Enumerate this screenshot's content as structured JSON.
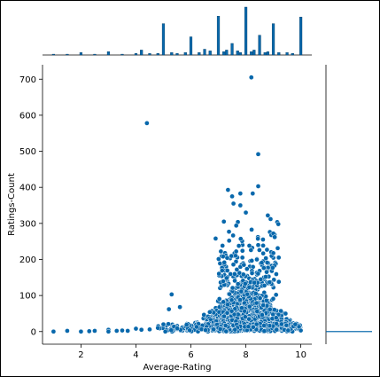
{
  "chart_data": {
    "type": "scatter",
    "title": "",
    "xlabel": "Average-Rating",
    "ylabel": "Ratings-Count",
    "xlim": [
      0.6,
      10.4
    ],
    "ylim": [
      -35,
      740
    ],
    "x_ticks": [
      2,
      4,
      6,
      8,
      10
    ],
    "y_ticks": [
      0,
      100,
      200,
      300,
      400,
      500,
      600,
      700
    ],
    "point_color": "#0868ac",
    "point_edge": "#ffffff",
    "grid": false,
    "legend": "none",
    "marginal_x": "histogram",
    "marginal_y": "histogram",
    "highlighted_points": [
      {
        "x": 8.2,
        "y": 705
      },
      {
        "x": 4.4,
        "y": 578
      },
      {
        "x": 8.45,
        "y": 492
      },
      {
        "x": 8.45,
        "y": 403
      },
      {
        "x": 7.35,
        "y": 393
      },
      {
        "x": 7.8,
        "y": 383
      },
      {
        "x": 8.25,
        "y": 383
      },
      {
        "x": 7.5,
        "y": 375
      },
      {
        "x": 7.55,
        "y": 355
      },
      {
        "x": 7.8,
        "y": 350
      },
      {
        "x": 8.0,
        "y": 330
      },
      {
        "x": 8.8,
        "y": 322
      },
      {
        "x": 8.9,
        "y": 312
      },
      {
        "x": 7.2,
        "y": 305
      },
      {
        "x": 9.0,
        "y": 272
      },
      {
        "x": 9.05,
        "y": 262
      },
      {
        "x": 6.9,
        "y": 258
      },
      {
        "x": 8.45,
        "y": 240
      },
      {
        "x": 5.3,
        "y": 103
      },
      {
        "x": 9.2,
        "y": 138
      },
      {
        "x": 9.1,
        "y": 102
      },
      {
        "x": 5.2,
        "y": 62
      },
      {
        "x": 5.6,
        "y": 68
      },
      {
        "x": 1.0,
        "y": 0
      },
      {
        "x": 1.5,
        "y": 2
      },
      {
        "x": 2.0,
        "y": 0
      },
      {
        "x": 2.3,
        "y": 1
      },
      {
        "x": 2.5,
        "y": 2
      },
      {
        "x": 3.0,
        "y": 5
      },
      {
        "x": 3.0,
        "y": 0
      },
      {
        "x": 3.3,
        "y": 2
      },
      {
        "x": 3.5,
        "y": 3
      },
      {
        "x": 3.7,
        "y": 2
      },
      {
        "x": 4.0,
        "y": 8
      },
      {
        "x": 4.2,
        "y": 5
      },
      {
        "x": 4.5,
        "y": 6
      },
      {
        "x": 4.8,
        "y": 10
      },
      {
        "x": 5.0,
        "y": 20
      },
      {
        "x": 9.8,
        "y": 20
      },
      {
        "x": 10.0,
        "y": 3
      }
    ],
    "x_hist_counts": [
      [
        1.0,
        1
      ],
      [
        1.5,
        1
      ],
      [
        2.0,
        3
      ],
      [
        2.5,
        1
      ],
      [
        3.0,
        4
      ],
      [
        3.5,
        1
      ],
      [
        4.0,
        2
      ],
      [
        4.2,
        6
      ],
      [
        4.5,
        2
      ],
      [
        4.8,
        2
      ],
      [
        5.0,
        38
      ],
      [
        5.3,
        3
      ],
      [
        5.5,
        2
      ],
      [
        5.8,
        3
      ],
      [
        6.0,
        22
      ],
      [
        6.3,
        3
      ],
      [
        6.5,
        7
      ],
      [
        6.7,
        5
      ],
      [
        7.0,
        47
      ],
      [
        7.2,
        4
      ],
      [
        7.3,
        6
      ],
      [
        7.5,
        14
      ],
      [
        7.7,
        5
      ],
      [
        7.8,
        3
      ],
      [
        8.0,
        58
      ],
      [
        8.2,
        4
      ],
      [
        8.3,
        6
      ],
      [
        8.5,
        24
      ],
      [
        8.7,
        3
      ],
      [
        8.8,
        4
      ],
      [
        9.0,
        38
      ],
      [
        9.2,
        3
      ],
      [
        9.5,
        3
      ],
      [
        9.7,
        2
      ],
      [
        10.0,
        46
      ]
    ],
    "y_hist_zero_bin": 1
  }
}
